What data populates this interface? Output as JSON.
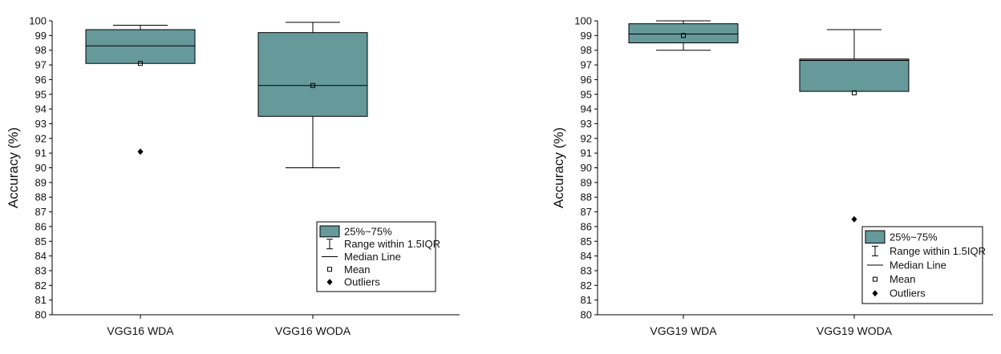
{
  "legend_labels": {
    "box": "25%~75%",
    "range": "Range within 1.5IQR",
    "median": "Median Line",
    "mean": "Mean",
    "outliers": "Outliers"
  },
  "colors": {
    "box_fill": "#66999A",
    "line": "#000000"
  },
  "chart_data": [
    {
      "type": "box",
      "title": "",
      "xlabel": "",
      "ylabel": "Accuracy (%)",
      "ylim": [
        80,
        100
      ],
      "yticks": [
        80,
        81,
        82,
        83,
        84,
        85,
        86,
        87,
        88,
        89,
        90,
        91,
        92,
        93,
        94,
        95,
        96,
        97,
        98,
        99,
        100
      ],
      "categories": [
        "VGG16 WDA",
        "VGG16 WODA"
      ],
      "boxes": [
        {
          "name": "VGG16 WDA",
          "q1": 97.1,
          "median": 98.3,
          "q3": 99.4,
          "whisker_low": 97.1,
          "whisker_high": 99.7,
          "mean": 97.1,
          "outliers": [
            91.1
          ]
        },
        {
          "name": "VGG16 WODA",
          "q1": 93.5,
          "median": 95.6,
          "q3": 99.2,
          "whisker_low": 90.0,
          "whisker_high": 99.9,
          "mean": 95.6,
          "outliers": []
        }
      ],
      "legend_position": "bottom-right"
    },
    {
      "type": "box",
      "title": "",
      "xlabel": "",
      "ylabel": "Accuracy (%)",
      "ylim": [
        80,
        100
      ],
      "yticks": [
        80,
        81,
        82,
        83,
        84,
        85,
        86,
        87,
        88,
        89,
        90,
        91,
        92,
        93,
        94,
        95,
        96,
        97,
        98,
        99,
        100
      ],
      "categories": [
        "VGG19 WDA",
        "VGG19 WODA"
      ],
      "boxes": [
        {
          "name": "VGG19 WDA",
          "q1": 98.5,
          "median": 99.1,
          "q3": 99.8,
          "whisker_low": 98.0,
          "whisker_high": 100.0,
          "mean": 99.0,
          "outliers": []
        },
        {
          "name": "VGG19 WODA",
          "q1": 95.2,
          "median": 97.3,
          "q3": 97.4,
          "whisker_low": 95.2,
          "whisker_high": 99.4,
          "mean": 95.1,
          "outliers": [
            86.5
          ]
        }
      ],
      "legend_position": "bottom-right"
    }
  ]
}
